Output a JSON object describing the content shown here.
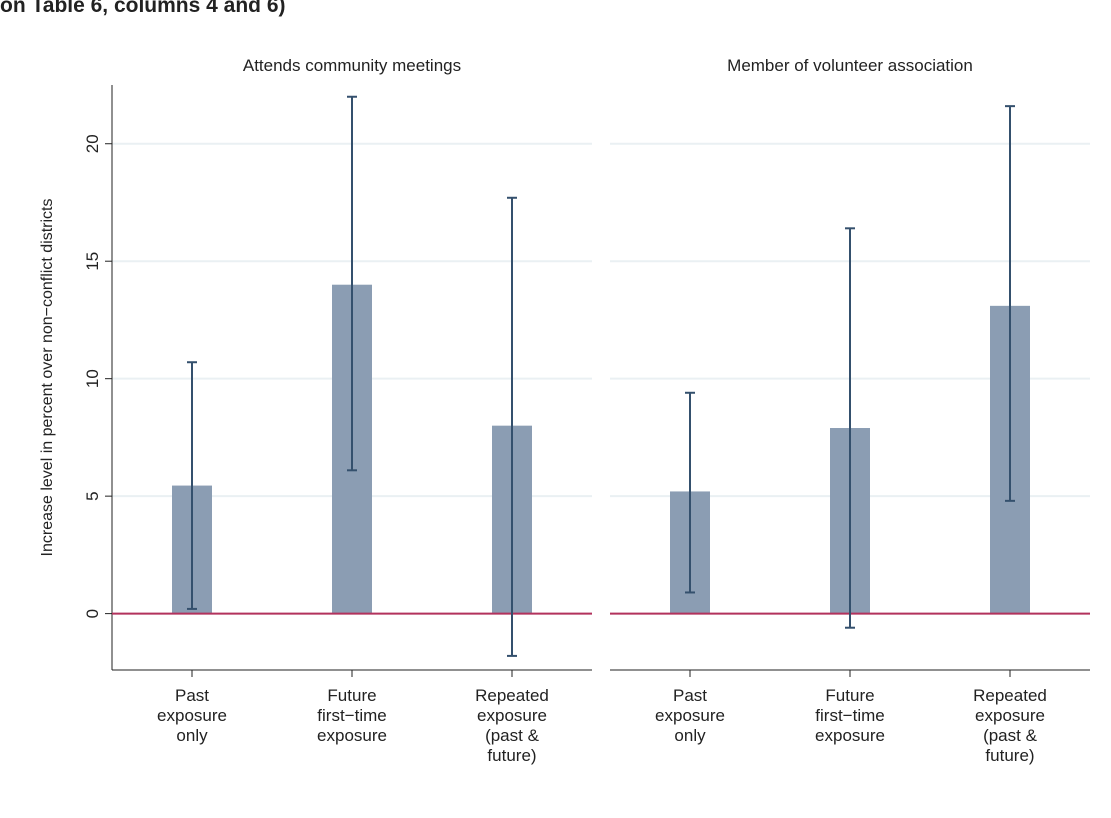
{
  "header": {
    "text": "on Table 6, columns 4 and 6)"
  },
  "chart_data": [
    {
      "type": "bar",
      "title": "Attends community meetings",
      "y_label": "Increase level in percent over non−conflict districts",
      "categories": [
        [
          "Past",
          "exposure",
          "only"
        ],
        [
          "Future",
          "first−time",
          "exposure"
        ],
        [
          "Repeated",
          "exposure",
          "(past &",
          "future)"
        ]
      ],
      "values": [
        5.45,
        14.0,
        8.0
      ],
      "ci_low": [
        0.2,
        6.1,
        -1.8
      ],
      "ci_high": [
        10.7,
        22.0,
        17.7
      ],
      "color": "#8b9db3",
      "error_color": "#34506d",
      "hline": 0,
      "hline_color": "#b3325c",
      "ylim": [
        -2.4,
        22.5
      ],
      "yticks": [
        0,
        5,
        10,
        15,
        20
      ],
      "grid": true,
      "show_ytick_labels": true
    },
    {
      "type": "bar",
      "title": "Member of volunteer association",
      "categories": [
        [
          "Past",
          "exposure",
          "only"
        ],
        [
          "Future",
          "first−time",
          "exposure"
        ],
        [
          "Repeated",
          "exposure",
          "(past &",
          "future)"
        ]
      ],
      "values": [
        5.2,
        7.9,
        13.1
      ],
      "ci_low": [
        0.9,
        -0.6,
        4.8
      ],
      "ci_high": [
        9.4,
        16.4,
        21.6
      ],
      "color": "#8b9db3",
      "error_color": "#34506d",
      "hline": 0,
      "hline_color": "#b3325c",
      "ylim": [
        -2.4,
        22.5
      ],
      "yticks": [
        0,
        5,
        10,
        15,
        20
      ],
      "grid": true,
      "show_ytick_labels": false
    }
  ]
}
